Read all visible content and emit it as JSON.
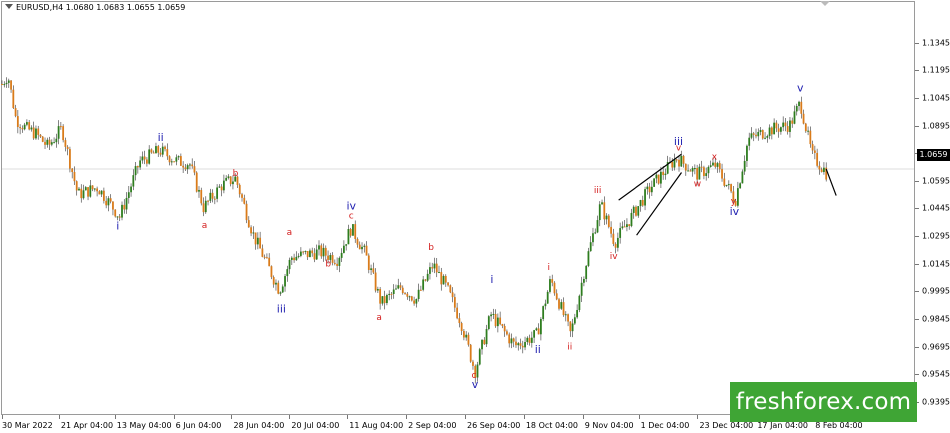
{
  "header": {
    "symbol_line": "EURUSD,H4  1.0680 1.0683 1.0655 1.0659"
  },
  "current_price": "1.0659",
  "watermark": "freshforex.com",
  "colors": {
    "up_body": "#2e7d1f",
    "down_body": "#d97b1a",
    "wick": "#333333",
    "wave_blue": "#1f1fb0",
    "wave_red": "#d42020",
    "price_line": "#dddddd"
  },
  "chart_data": {
    "type": "candlestick",
    "title": "EURUSD,H4",
    "ylim": [
      0.933,
      1.1565
    ],
    "y_ticks": [
      "1.1345",
      "1.1195",
      "1.1045",
      "1.0895",
      "1.0745",
      "1.0595",
      "1.0445",
      "1.0295",
      "1.0145",
      "0.9995",
      "0.9845",
      "0.9695",
      "0.9545",
      "0.9395"
    ],
    "x_ticks": [
      {
        "label": "30 Mar 2022",
        "t": 0
      },
      {
        "label": "21 Apr 04:00",
        "t": 57
      },
      {
        "label": "13 May 04:00",
        "t": 113
      },
      {
        "label": "6 Jun 04:00",
        "t": 172
      },
      {
        "label": "28 Jun 04:00",
        "t": 230
      },
      {
        "label": "20 Jul 04:00",
        "t": 288
      },
      {
        "label": "11 Aug 04:00",
        "t": 346
      },
      {
        "label": "2 Sep 04:00",
        "t": 405
      },
      {
        "label": "26 Sep 04:00",
        "t": 464
      },
      {
        "label": "18 Oct 04:00",
        "t": 523
      },
      {
        "label": "9 Nov 04:00",
        "t": 582
      },
      {
        "label": "1 Dec 04:00",
        "t": 638
      },
      {
        "label": "23 Dec 04:00",
        "t": 697
      },
      {
        "label": "17 Jan 04:00",
        "t": 755
      },
      {
        "label": "8 Feb 04:00",
        "t": 813
      }
    ],
    "t_max": 914,
    "price_path": [
      [
        0,
        1.112
      ],
      [
        6,
        1.117
      ],
      [
        14,
        1.093
      ],
      [
        24,
        1.088
      ],
      [
        34,
        1.085
      ],
      [
        46,
        1.078
      ],
      [
        60,
        1.088
      ],
      [
        76,
        1.052
      ],
      [
        96,
        1.056
      ],
      [
        118,
        1.04
      ],
      [
        138,
        1.07
      ],
      [
        158,
        1.076
      ],
      [
        176,
        1.07
      ],
      [
        188,
        1.069
      ],
      [
        202,
        1.045
      ],
      [
        220,
        1.057
      ],
      [
        234,
        1.061
      ],
      [
        252,
        1.03
      ],
      [
        278,
        1.0
      ],
      [
        290,
        1.018
      ],
      [
        318,
        1.021
      ],
      [
        336,
        1.017
      ],
      [
        350,
        1.034
      ],
      [
        364,
        1.02
      ],
      [
        380,
        0.993
      ],
      [
        400,
        1.002
      ],
      [
        415,
        0.995
      ],
      [
        432,
        1.014
      ],
      [
        446,
        1.001
      ],
      [
        460,
        0.983
      ],
      [
        474,
        0.956
      ],
      [
        490,
        0.987
      ],
      [
        514,
        0.97
      ],
      [
        536,
        0.976
      ],
      [
        550,
        1.006
      ],
      [
        570,
        0.976
      ],
      [
        584,
        1.012
      ],
      [
        600,
        1.047
      ],
      [
        614,
        1.026
      ],
      [
        650,
        1.056
      ],
      [
        676,
        1.072
      ],
      [
        697,
        1.063
      ],
      [
        715,
        1.068
      ],
      [
        735,
        1.049
      ],
      [
        748,
        1.082
      ],
      [
        768,
        1.087
      ],
      [
        790,
        1.09
      ],
      [
        800,
        1.102
      ],
      [
        812,
        1.073
      ],
      [
        825,
        1.065
      ],
      [
        836,
        1.0515
      ]
    ],
    "candle_count": 365,
    "forecast_line": {
      "from": [
        826,
        1.0659
      ],
      "to": [
        836,
        1.0515
      ]
    },
    "channel_lines": [
      {
        "from": [
          618,
          1.049
        ],
        "to": [
          681,
          1.074
        ]
      },
      {
        "from": [
          636,
          1.03
        ],
        "to": [
          681,
          1.064
        ]
      }
    ],
    "wave_labels": [
      {
        "text": "i",
        "t": 116,
        "price": 1.033,
        "color": "blue"
      },
      {
        "text": "ii",
        "t": 159,
        "price": 1.081,
        "color": "blue"
      },
      {
        "text": "iii",
        "t": 280,
        "price": 0.988,
        "color": "blue"
      },
      {
        "text": "iv",
        "t": 350,
        "price": 1.044,
        "color": "blue"
      },
      {
        "text": "v",
        "t": 474,
        "price": 0.947,
        "color": "blue"
      },
      {
        "text": "i",
        "t": 491,
        "price": 1.004,
        "color": "blue"
      },
      {
        "text": "ii",
        "t": 537,
        "price": 0.966,
        "color": "blue"
      },
      {
        "text": "iii",
        "t": 678,
        "price": 1.079,
        "color": "blue"
      },
      {
        "text": "iv",
        "t": 734,
        "price": 1.041,
        "color": "blue"
      },
      {
        "text": "v",
        "t": 800,
        "price": 1.108,
        "color": "blue"
      },
      {
        "text": "a",
        "t": 203,
        "price": 1.034,
        "color": "red"
      },
      {
        "text": "b",
        "t": 234,
        "price": 1.062,
        "color": "red"
      },
      {
        "text": "a",
        "t": 288,
        "price": 1.03,
        "color": "red"
      },
      {
        "text": "b",
        "t": 327,
        "price": 1.013,
        "color": "red"
      },
      {
        "text": "c",
        "t": 350,
        "price": 1.039,
        "color": "red"
      },
      {
        "text": "a",
        "t": 378,
        "price": 0.984,
        "color": "red"
      },
      {
        "text": "b",
        "t": 430,
        "price": 1.022,
        "color": "red"
      },
      {
        "text": "c",
        "t": 473,
        "price": 0.9525,
        "color": "red"
      },
      {
        "text": "i",
        "t": 548,
        "price": 1.011,
        "color": "red"
      },
      {
        "text": "ii",
        "t": 569,
        "price": 0.968,
        "color": "red"
      },
      {
        "text": "iii",
        "t": 597,
        "price": 1.053,
        "color": "red"
      },
      {
        "text": "iv",
        "t": 613,
        "price": 1.017,
        "color": "red"
      },
      {
        "text": "v",
        "t": 678,
        "price": 1.076,
        "color": "red"
      },
      {
        "text": "w",
        "t": 697,
        "price": 1.0565,
        "color": "red"
      },
      {
        "text": "x",
        "t": 714,
        "price": 1.071,
        "color": "red"
      },
      {
        "text": "y",
        "t": 733,
        "price": 1.047,
        "color": "red"
      }
    ]
  }
}
